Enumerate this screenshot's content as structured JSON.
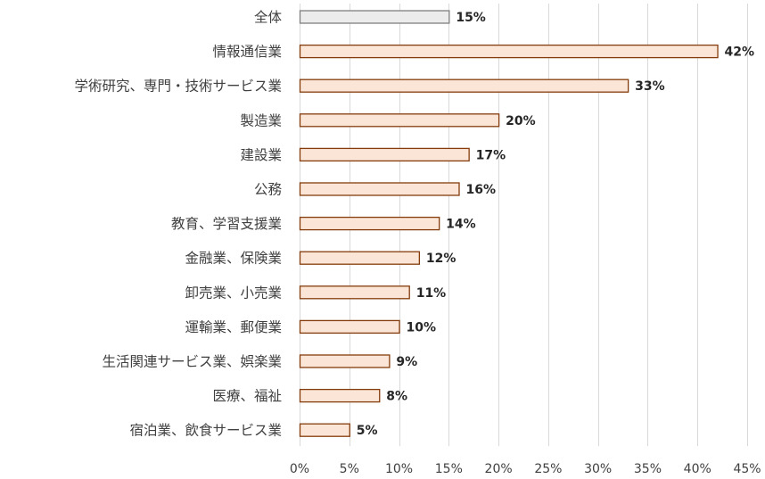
{
  "chart_data": {
    "type": "bar",
    "orientation": "horizontal",
    "title": "",
    "xlabel": "",
    "ylabel": "",
    "xlim": [
      0,
      45
    ],
    "grid": true,
    "legend": "none",
    "categories": [
      "全体",
      "情報通信業",
      "学術研究、専門・技術サービス業",
      "製造業",
      "建設業",
      "公務",
      "教育、学習支援業",
      "金融業、保険業",
      "卸売業、小売業",
      "運輸業、郵便業",
      "生活関連サービス業、娯楽業",
      "医療、福祉",
      "宿泊業、飲食サービス業"
    ],
    "values": [
      15,
      42,
      33,
      20,
      17,
      16,
      14,
      12,
      11,
      10,
      9,
      8,
      5
    ],
    "value_labels": [
      "15%",
      "42%",
      "33%",
      "20%",
      "17%",
      "16%",
      "14%",
      "12%",
      "11%",
      "10%",
      "9%",
      "8%",
      "5%"
    ],
    "x_ticks": [
      0,
      5,
      10,
      15,
      20,
      25,
      30,
      35,
      40,
      45
    ],
    "x_tick_labels": [
      "0%",
      "5%",
      "10%",
      "15%",
      "20%",
      "25%",
      "30%",
      "35%",
      "40%",
      "45%"
    ],
    "colors": {
      "highlight_fill": "#ececec",
      "highlight_stroke": "#7f7f7f",
      "bar_fill": "#fbe5d6",
      "bar_stroke": "#843c0c",
      "grid": "#d9d9d9"
    }
  }
}
